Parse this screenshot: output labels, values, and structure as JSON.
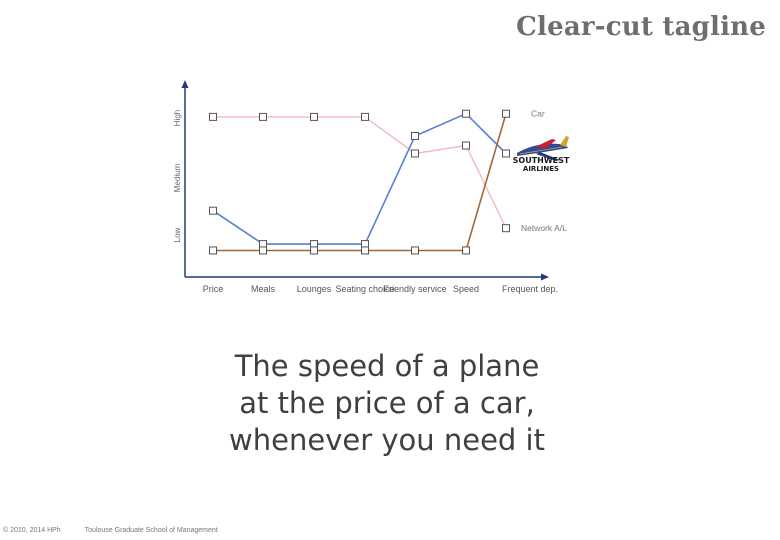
{
  "slide": {
    "title": "Clear-cut tagline",
    "tagline_lines": [
      "The speed of a plane",
      "at the price of a car,",
      "whenever you need it"
    ],
    "footer_copyright": "© 2010, 2014 HPh",
    "footer_school": "Toulouse Graduate School of Management"
  },
  "chart_data": {
    "type": "line",
    "categories": [
      "Price",
      "Meals",
      "Lounges",
      "Seating choice",
      "Friendly service",
      "Speed",
      "Frequent dep."
    ],
    "y_levels": [
      "Low",
      "Medium",
      "High"
    ],
    "ylim": [
      0,
      100
    ],
    "grid": false,
    "series": [
      {
        "name": "Car",
        "color": "#a0683a",
        "values": [
          6,
          6,
          6,
          6,
          6,
          6,
          92
        ]
      },
      {
        "name": "Network A/L",
        "color": "#f2b8be",
        "values": [
          90,
          90,
          90,
          90,
          67,
          72,
          20
        ]
      },
      {
        "name": "",
        "logo": "southwest-airlines-logo",
        "logo_text": [
          "SOUTHWEST",
          "AIRLINES"
        ],
        "color": "#5b7fd8",
        "values": [
          31,
          10,
          10,
          10,
          78,
          92,
          67
        ]
      }
    ]
  }
}
